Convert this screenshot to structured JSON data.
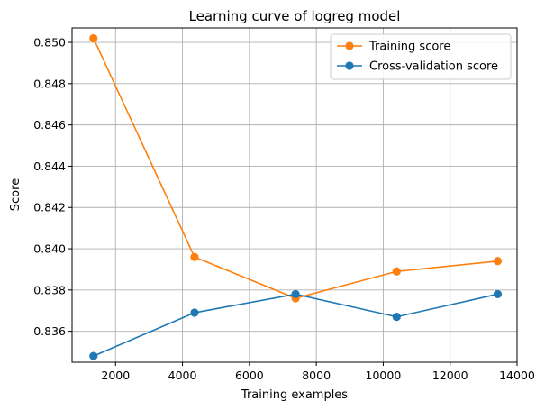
{
  "chart_data": {
    "type": "line",
    "title": "Learning curve of logreg model",
    "xlabel": "Training examples",
    "ylabel": "Score",
    "xlim": [
      700,
      14000
    ],
    "ylim": [
      0.8345,
      0.8507
    ],
    "xticks": [
      2000,
      4000,
      6000,
      8000,
      10000,
      12000,
      14000
    ],
    "xtick_labels": [
      "2000",
      "4000",
      "6000",
      "8000",
      "10000",
      "12000",
      "14000"
    ],
    "yticks": [
      0.836,
      0.838,
      0.84,
      0.842,
      0.844,
      0.846,
      0.848,
      0.85
    ],
    "ytick_labels": [
      "0.836",
      "0.838",
      "0.840",
      "0.842",
      "0.844",
      "0.846",
      "0.848",
      "0.850"
    ],
    "grid": true,
    "legend_position": "top-right",
    "series": [
      {
        "name": "Training score",
        "color": "#ff7f0e",
        "x": [
          1340,
          4360,
          7380,
          10400,
          13420
        ],
        "y": [
          0.8502,
          0.8396,
          0.8376,
          0.8389,
          0.8394
        ]
      },
      {
        "name": "Cross-validation score",
        "color": "#1f77b4",
        "x": [
          1340,
          4360,
          7380,
          10400,
          13420
        ],
        "y": [
          0.8348,
          0.8369,
          0.8378,
          0.8367,
          0.8378
        ]
      }
    ]
  }
}
